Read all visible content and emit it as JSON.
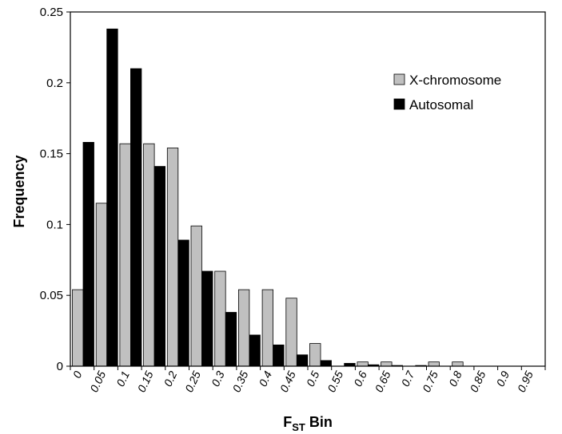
{
  "chart_data": {
    "type": "bar",
    "categories": [
      "0",
      "0.05",
      "0.1",
      "0.15",
      "0.2",
      "0.25",
      "0.3",
      "0.35",
      "0.4",
      "0.45",
      "0.5",
      "0.55",
      "0.6",
      "0.65",
      "0.7",
      "0.75",
      "0.8",
      "0.85",
      "0.9",
      "0.95"
    ],
    "series": [
      {
        "name": "X-chromosome",
        "color": "#c0c0c0",
        "values": [
          0.054,
          0.115,
          0.157,
          0.157,
          0.154,
          0.099,
          0.067,
          0.054,
          0.054,
          0.048,
          0.016,
          0.0,
          0.003,
          0.003,
          0.0,
          0.003,
          0.003,
          0.0,
          0.0,
          0.0
        ]
      },
      {
        "name": "Autosomal",
        "color": "#000000",
        "values": [
          0.158,
          0.238,
          0.21,
          0.141,
          0.089,
          0.067,
          0.038,
          0.022,
          0.015,
          0.008,
          0.004,
          0.002,
          0.001,
          0.0005,
          0.0005,
          0.0,
          0.0,
          0.0,
          0.0,
          0.0
        ]
      }
    ],
    "yticks": [
      "0",
      "0.05",
      "0.1",
      "0.15",
      "0.2",
      "0.25"
    ],
    "ylim": [
      0,
      0.25
    ],
    "xlabel": {
      "main": "F",
      "sub": "ST",
      "rest": " Bin"
    },
    "ylabel": "Frequency",
    "legend": "top-right",
    "grid": false
  }
}
